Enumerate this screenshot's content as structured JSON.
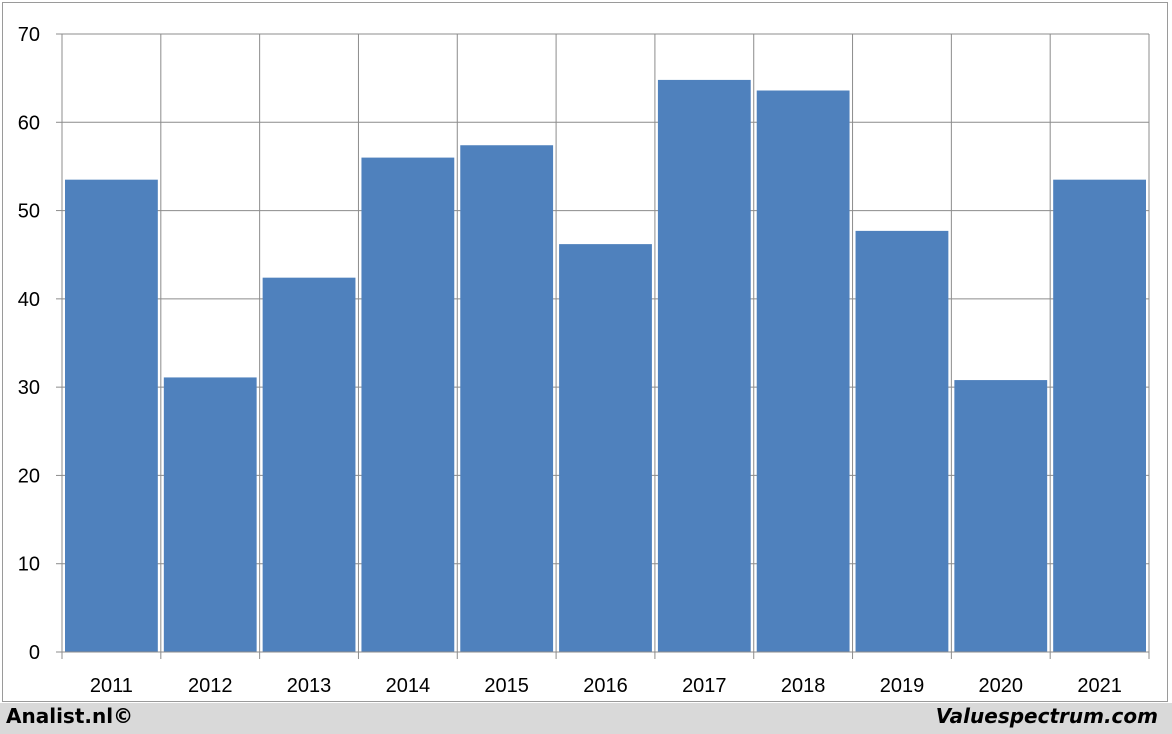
{
  "chart_data": {
    "type": "bar",
    "categories": [
      "2011",
      "2012",
      "2013",
      "2014",
      "2015",
      "2016",
      "2017",
      "2018",
      "2019",
      "2020",
      "2021"
    ],
    "values": [
      53.5,
      31.1,
      42.4,
      56.0,
      57.4,
      46.2,
      64.8,
      63.6,
      47.7,
      30.8,
      53.5
    ],
    "yticks": [
      "0",
      "10",
      "20",
      "30",
      "40",
      "50",
      "60",
      "70"
    ],
    "ylim": [
      0,
      70
    ],
    "grid": true,
    "bar_color": "#4f81bd",
    "title": "",
    "xlabel": "",
    "ylabel": ""
  },
  "footer": {
    "left_credit": "Analist.nl©",
    "right_credit": "Valuespectrum.com"
  }
}
